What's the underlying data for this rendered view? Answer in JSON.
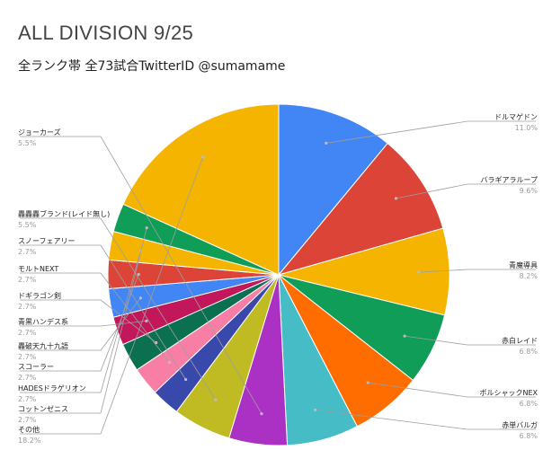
{
  "chart_data": {
    "type": "pie",
    "title": "ALL DIVISION 9/25",
    "subtitle": "全ランク帯 全73試合TwitterID @sumamame",
    "slices": [
      {
        "label": "ドルマゲドン",
        "value": 11.0,
        "pct_label": "11.0%",
        "color": "#4285f4"
      },
      {
        "label": "バラギアラループ",
        "value": 9.6,
        "pct_label": "9.6%",
        "color": "#db4437"
      },
      {
        "label": "青魔導具",
        "value": 8.2,
        "pct_label": "8.2%",
        "color": "#f4b400"
      },
      {
        "label": "赤白レイド",
        "value": 6.8,
        "pct_label": "6.8%",
        "color": "#0f9d58"
      },
      {
        "label": "ボルシャックNEX",
        "value": 6.8,
        "pct_label": "6.8%",
        "color": "#ff6d00"
      },
      {
        "label": "赤単バルガ",
        "value": 6.8,
        "pct_label": "6.8%",
        "color": "#46bdc6"
      },
      {
        "label": "ジョーカーズ",
        "value": 5.5,
        "pct_label": "5.5%",
        "color": "#ab30c4"
      },
      {
        "label": "轟轟轟ブランド(レイド無し)",
        "value": 5.5,
        "pct_label": "5.5%",
        "color": "#c0bb22"
      },
      {
        "label": "スノーフェアリー",
        "value": 2.7,
        "pct_label": "2.7%",
        "color": "#3949ab"
      },
      {
        "label": "モルトNEXT",
        "value": 2.7,
        "pct_label": "2.7%",
        "color": "#f87ea6"
      },
      {
        "label": "ドギラゴン剣",
        "value": 2.7,
        "pct_label": "2.7%",
        "color": "#0a7050"
      },
      {
        "label": "青黒ハンデス系",
        "value": 2.7,
        "pct_label": "2.7%",
        "color": "#c2185b"
      },
      {
        "label": "轟破天九十九語",
        "value": 2.7,
        "pct_label": "2.7%",
        "color": "#4285f4"
      },
      {
        "label": "スコーラー",
        "value": 2.7,
        "pct_label": "2.7%",
        "color": "#db4437"
      },
      {
        "label": "HADESドラゲリオン",
        "value": 2.7,
        "pct_label": "2.7%",
        "color": "#f4b400"
      },
      {
        "label": "コットンゼニス",
        "value": 2.7,
        "pct_label": "2.7%",
        "color": "#0f9d58"
      },
      {
        "label": "その他",
        "value": 18.2,
        "pct_label": "18.2%",
        "color": "#f4b400"
      }
    ]
  }
}
